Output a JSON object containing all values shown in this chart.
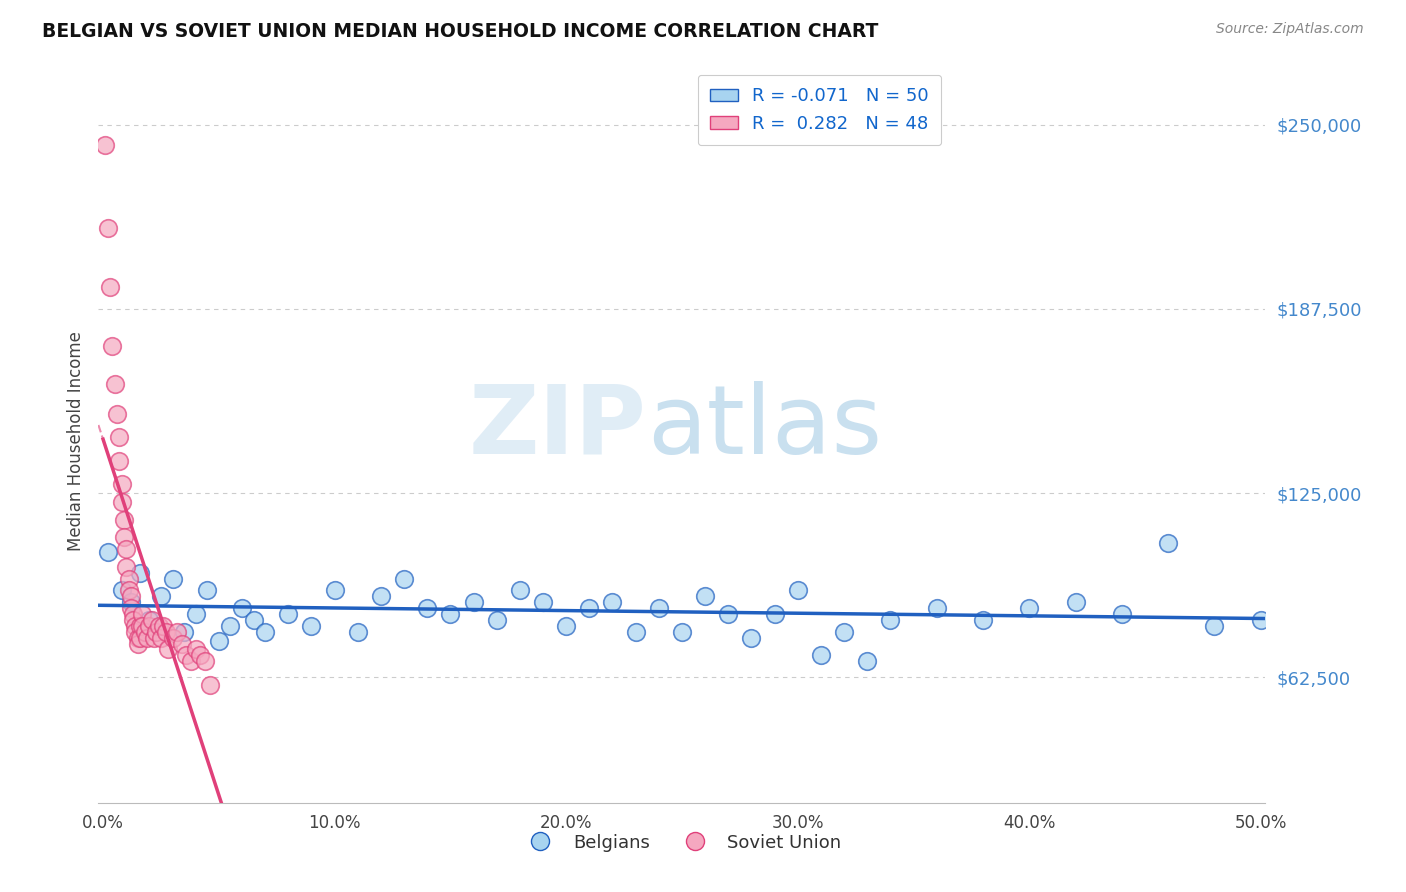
{
  "title": "BELGIAN VS SOVIET UNION MEDIAN HOUSEHOLD INCOME CORRELATION CHART",
  "source": "Source: ZipAtlas.com",
  "ylabel": "Median Household Income",
  "xlim": [
    -0.002,
    0.502
  ],
  "ylim": [
    20000,
    265000
  ],
  "yticks": [
    62500,
    125000,
    187500,
    250000
  ],
  "ytick_labels": [
    "$62,500",
    "$125,000",
    "$187,500",
    "$250,000"
  ],
  "xticks": [
    0.0,
    0.1,
    0.2,
    0.3,
    0.4,
    0.5
  ],
  "xtick_labels": [
    "0.0%",
    "10.0%",
    "20.0%",
    "30.0%",
    "40.0%",
    "50.0%"
  ],
  "bg_color": "#ffffff",
  "watermark_zip": "ZIP",
  "watermark_atlas": "atlas",
  "blue_r": "-0.071",
  "blue_n": "50",
  "pink_r": "0.282",
  "pink_n": "48",
  "blue_scatter_color": "#a8d4f0",
  "pink_scatter_color": "#f5a8c0",
  "blue_line_color": "#2060c0",
  "pink_line_color": "#e0407a",
  "blue_scatter_x": [
    0.002,
    0.008,
    0.012,
    0.016,
    0.02,
    0.025,
    0.03,
    0.035,
    0.04,
    0.045,
    0.05,
    0.055,
    0.06,
    0.065,
    0.07,
    0.08,
    0.09,
    0.1,
    0.11,
    0.12,
    0.13,
    0.14,
    0.15,
    0.16,
    0.17,
    0.18,
    0.19,
    0.2,
    0.21,
    0.22,
    0.23,
    0.24,
    0.25,
    0.27,
    0.28,
    0.29,
    0.3,
    0.32,
    0.34,
    0.36,
    0.38,
    0.4,
    0.42,
    0.44,
    0.46,
    0.48,
    0.5,
    0.26,
    0.31,
    0.33
  ],
  "blue_scatter_y": [
    105000,
    92000,
    88000,
    98000,
    82000,
    90000,
    96000,
    78000,
    84000,
    92000,
    75000,
    80000,
    86000,
    82000,
    78000,
    84000,
    80000,
    92000,
    78000,
    90000,
    96000,
    86000,
    84000,
    88000,
    82000,
    92000,
    88000,
    80000,
    86000,
    88000,
    78000,
    86000,
    78000,
    84000,
    76000,
    84000,
    92000,
    78000,
    82000,
    86000,
    82000,
    86000,
    88000,
    84000,
    108000,
    80000,
    82000,
    90000,
    70000,
    68000
  ],
  "pink_scatter_x": [
    0.001,
    0.002,
    0.003,
    0.004,
    0.005,
    0.006,
    0.007,
    0.007,
    0.008,
    0.008,
    0.009,
    0.009,
    0.01,
    0.01,
    0.011,
    0.011,
    0.012,
    0.012,
    0.013,
    0.013,
    0.014,
    0.014,
    0.015,
    0.015,
    0.016,
    0.016,
    0.017,
    0.017,
    0.018,
    0.019,
    0.02,
    0.021,
    0.022,
    0.023,
    0.024,
    0.025,
    0.026,
    0.027,
    0.028,
    0.03,
    0.032,
    0.034,
    0.036,
    0.038,
    0.04,
    0.042,
    0.044,
    0.046
  ],
  "pink_scatter_y": [
    243000,
    215000,
    195000,
    175000,
    162000,
    152000,
    144000,
    136000,
    128000,
    122000,
    116000,
    110000,
    106000,
    100000,
    96000,
    92000,
    90000,
    86000,
    84000,
    82000,
    80000,
    78000,
    76000,
    74000,
    80000,
    76000,
    84000,
    80000,
    78000,
    76000,
    80000,
    82000,
    76000,
    78000,
    80000,
    76000,
    80000,
    78000,
    72000,
    76000,
    78000,
    74000,
    70000,
    68000,
    72000,
    70000,
    68000,
    60000
  ]
}
